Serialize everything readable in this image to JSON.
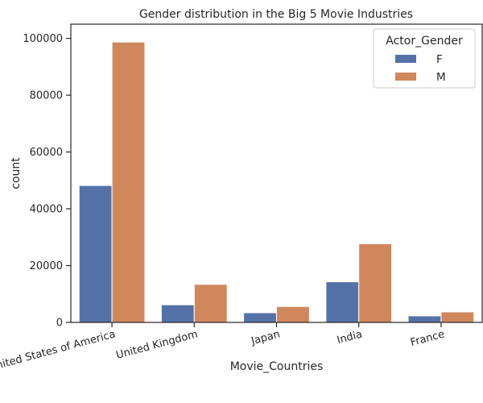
{
  "chart_data": {
    "type": "bar",
    "title": "Gender distribution in the Big 5 Movie Industries",
    "xlabel": "Movie_Countries",
    "ylabel": "count",
    "categories": [
      "United States of America",
      "United Kingdom",
      "Japan",
      "India",
      "France"
    ],
    "series": [
      {
        "name": "F",
        "color": "#5572a8",
        "values": [
          48200,
          6200,
          3400,
          14300,
          2300
        ]
      },
      {
        "name": "M",
        "color": "#d0875c",
        "values": [
          98700,
          13400,
          5600,
          27700,
          3700
        ]
      }
    ],
    "ylim": [
      0,
      105000
    ],
    "yticks": [
      0,
      20000,
      40000,
      60000,
      80000,
      100000
    ],
    "xtick_rotation": -15,
    "legend": {
      "title": "Actor_Gender",
      "position": "top-right"
    },
    "grid": false
  }
}
